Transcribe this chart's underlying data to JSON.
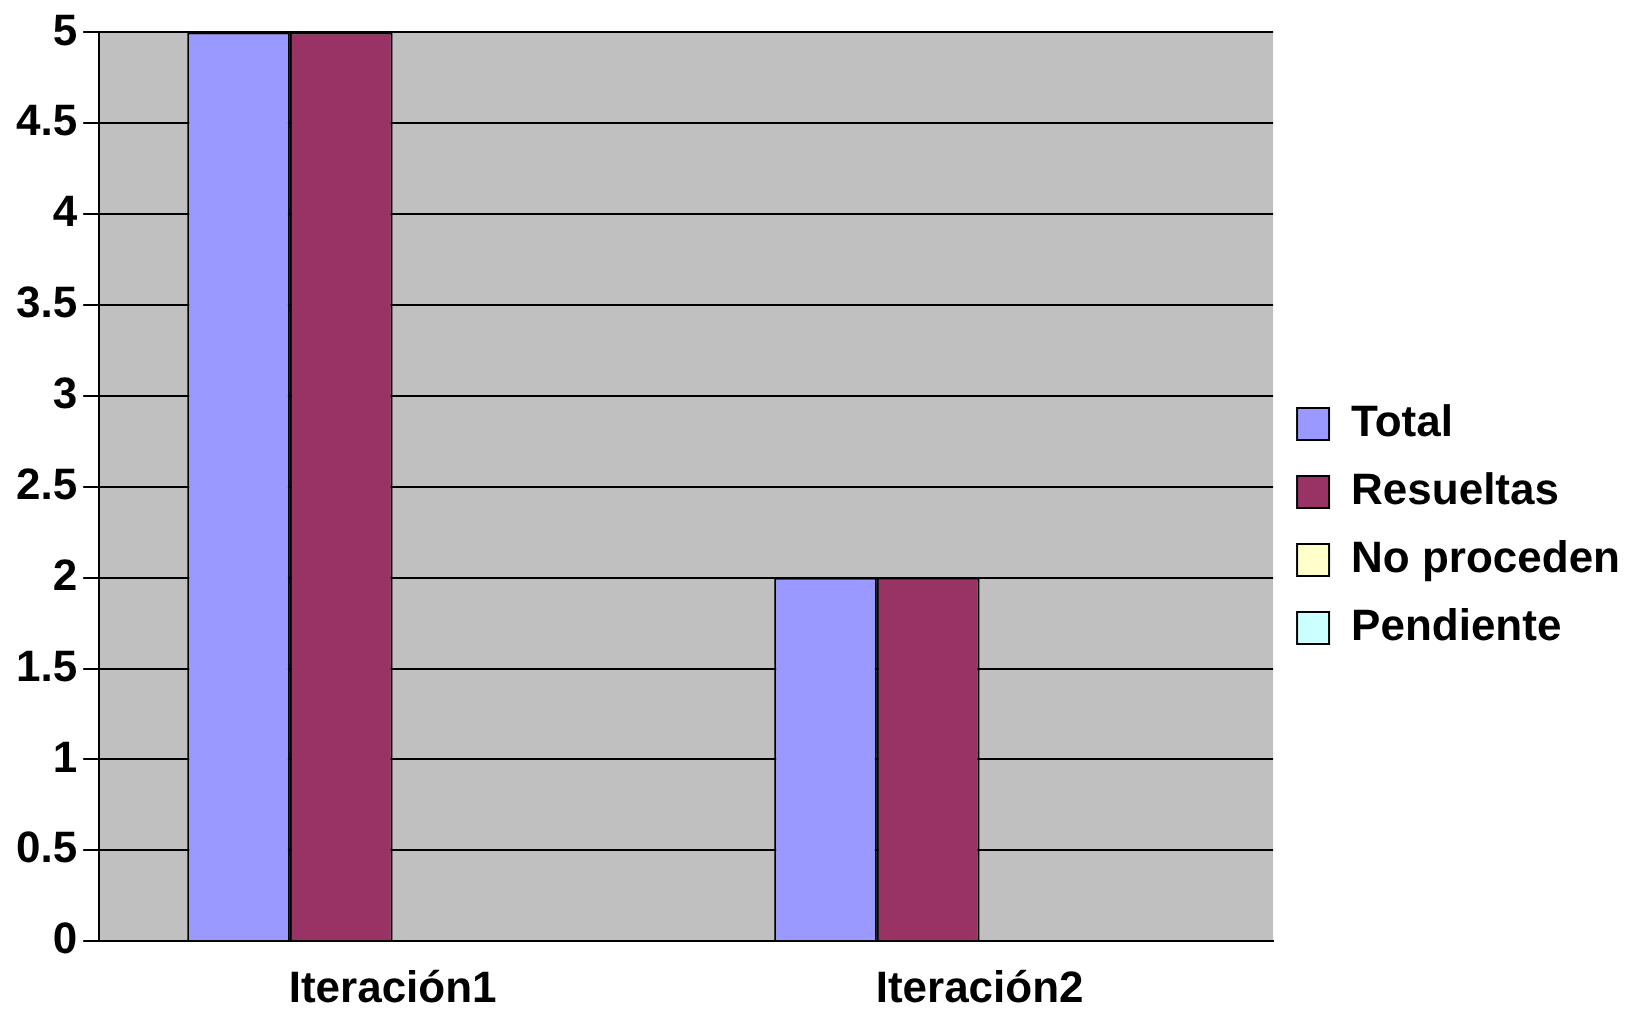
{
  "chart_data": {
    "type": "bar",
    "categories": [
      "Iteración1",
      "Iteración2"
    ],
    "series": [
      {
        "name": "Total",
        "color": "#9999ff",
        "values": [
          5,
          2
        ]
      },
      {
        "name": "Resueltas",
        "color": "#993366",
        "values": [
          5,
          2
        ]
      },
      {
        "name": "No proceden",
        "color": "#ffffcc",
        "values": [
          0,
          0
        ]
      },
      {
        "name": "Pendiente",
        "color": "#ccffff",
        "values": [
          0,
          0
        ]
      }
    ],
    "ylim": [
      0,
      5
    ],
    "yticks": [
      0,
      0.5,
      1,
      1.5,
      2,
      2.5,
      3,
      3.5,
      4,
      4.5,
      5
    ],
    "grid": "y",
    "legend": "right"
  }
}
